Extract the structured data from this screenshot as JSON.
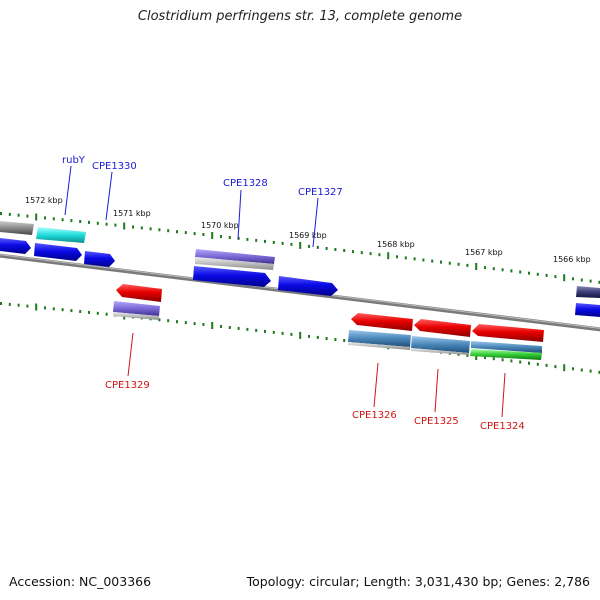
{
  "title": "Clostridium perfringens str. 13, complete genome",
  "footer": {
    "accession": "Accession: NC_003366",
    "summary": "Topology: circular; Length: 3,031,430 bp; Genes: 2,786"
  },
  "scale_labels": [
    "1572 kbp",
    "1571 kbp",
    "1570 kbp",
    "1569 kbp",
    "1568 kbp",
    "1567 kbp",
    "1566 kbp"
  ],
  "forward_gene_labels": [
    "rubY",
    "CPE1330",
    "CPE1328",
    "CPE1327"
  ],
  "reverse_gene_labels": [
    "CPE1329",
    "CPE1326",
    "CPE1325",
    "CPE1324"
  ],
  "colors": {
    "forward_label": "#1a1ad6",
    "reverse_label": "#d01414",
    "backbone": "#7a7a7a",
    "tick": "#1e7a1e",
    "cds_blue": "#0a0ae6",
    "cds_red": "#e00000",
    "cyan": "#22dcdc",
    "lavender": "#7b68d6",
    "steel": "#4a86b8",
    "green": "#33cc33"
  }
}
